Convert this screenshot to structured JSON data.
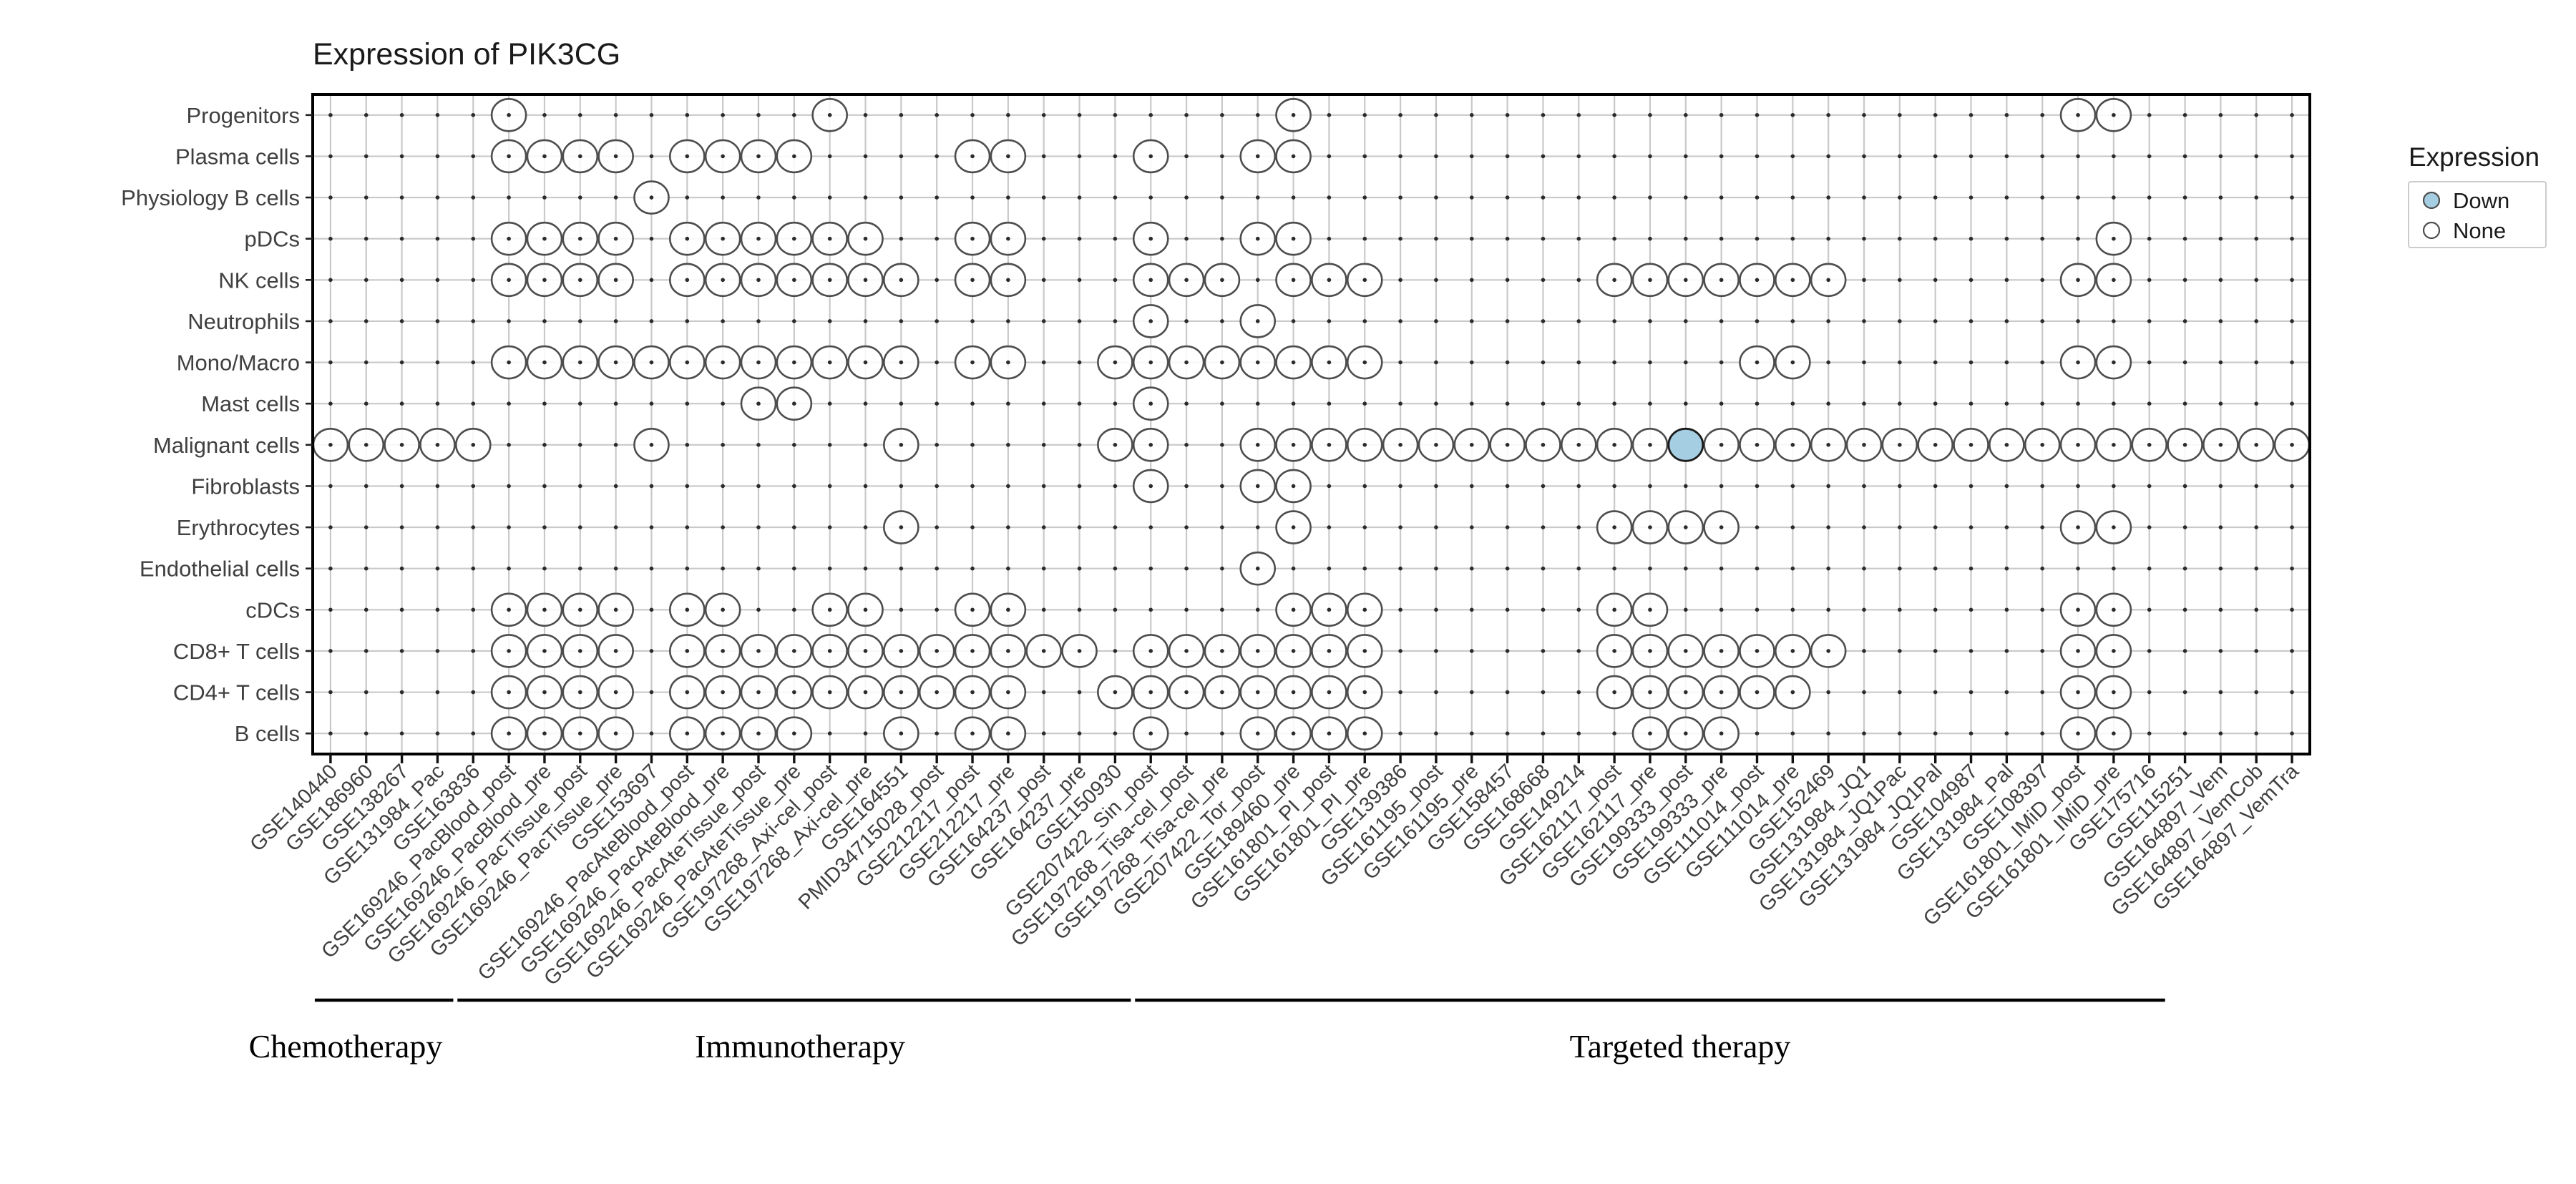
{
  "chart_data": {
    "type": "scatter",
    "title": "Expression of PIK3CG",
    "xlabel": "",
    "ylabel": "",
    "grid": true,
    "legend_position": "right",
    "y_categories": [
      "Progenitors",
      "Plasma cells",
      "Physiology B cells",
      "pDCs",
      "NK cells",
      "Neutrophils",
      "Mono/Macro",
      "Mast cells",
      "Malignant cells",
      "Fibroblasts",
      "Erythrocytes",
      "Endothelial cells",
      "cDCs",
      "CD8+ T cells",
      "CD4+ T cells",
      "B cells"
    ],
    "x_categories": [
      "GSE140440",
      "GSE186960",
      "GSE138267",
      "GSE131984_Pac",
      "GSE163836",
      "GSE169246_PacBlood_post",
      "GSE169246_PacBlood_pre",
      "GSE169246_PacTissue_post",
      "GSE169246_PacTissue_pre",
      "GSE153697",
      "GSE169246_PacAteBlood_post",
      "GSE169246_PacAteBlood_pre",
      "GSE169246_PacAteTissue_post",
      "GSE169246_PacAteTissue_pre",
      "GSE197268_Axi-cel_post",
      "GSE197268_Axi-cel_pre",
      "GSE164551",
      "PMID34715028_post",
      "GSE212217_post",
      "GSE212217_pre",
      "GSE164237_post",
      "GSE164237_pre",
      "GSE150930",
      "GSE207422_Sin_post",
      "GSE197268_Tisa-cel_post",
      "GSE197268_Tisa-cel_pre",
      "GSE207422_Tor_post",
      "GSE189460_pre",
      "GSE161801_PI_post",
      "GSE161801_PI_pre",
      "GSE139386",
      "GSE161195_post",
      "GSE161195_pre",
      "GSE158457",
      "GSE168668",
      "GSE149214",
      "GSE162117_post",
      "GSE162117_pre",
      "GSE199333_post",
      "GSE199333_pre",
      "GSE111014_post",
      "GSE111014_pre",
      "GSE152469",
      "GSE131984_JQ1",
      "GSE131984_JQ1Pac",
      "GSE131984_JQ1Pal",
      "GSE104987",
      "GSE131984_Pal",
      "GSE108397",
      "GSE161801_IMiD_post",
      "GSE161801_IMiD_pre",
      "GSE175716",
      "GSE115251",
      "GSE164897_Vem",
      "GSE164897_VemCob",
      "GSE164897_VemTra"
    ],
    "therapy_groups": [
      {
        "label": "Chemotherapy",
        "from_col": 1,
        "to_col": 4,
        "label_center_x": 483
      },
      {
        "label": "Immunotherapy",
        "from_col": 5,
        "to_col": 23,
        "label_center_x": 1118
      },
      {
        "label": "Targeted therapy",
        "from_col": 24,
        "to_col": 52,
        "label_center_x": 2348
      }
    ],
    "legend": {
      "title": "Expression",
      "entries": [
        {
          "label": "Down",
          "fill": "#a6cee3"
        },
        {
          "label": "None",
          "fill": "#ffffff"
        }
      ]
    },
    "presence": {
      "Progenitors": [
        6,
        15,
        28,
        50,
        51
      ],
      "Plasma cells": [
        6,
        7,
        8,
        9,
        11,
        12,
        13,
        14,
        19,
        20,
        24,
        27,
        28
      ],
      "Physiology B cells": [
        10
      ],
      "pDCs": [
        6,
        7,
        8,
        9,
        11,
        12,
        13,
        14,
        15,
        16,
        19,
        20,
        24,
        27,
        28,
        51
      ],
      "NK cells": [
        6,
        7,
        8,
        9,
        11,
        12,
        13,
        14,
        15,
        16,
        17,
        19,
        20,
        24,
        25,
        26,
        28,
        29,
        30,
        37,
        38,
        39,
        40,
        41,
        42,
        43,
        50,
        51
      ],
      "Neutrophils": [
        24,
        27
      ],
      "Mono/Macro": [
        6,
        7,
        8,
        9,
        10,
        11,
        12,
        13,
        14,
        15,
        16,
        17,
        19,
        20,
        23,
        24,
        25,
        26,
        27,
        28,
        29,
        30,
        41,
        42,
        50,
        51
      ],
      "Mast cells": [
        13,
        14,
        24
      ],
      "Malignant cells": [
        1,
        2,
        3,
        4,
        5,
        10,
        17,
        23,
        24,
        27,
        28,
        29,
        30,
        31,
        32,
        33,
        34,
        35,
        36,
        37,
        38,
        39,
        40,
        41,
        42,
        43,
        44,
        45,
        46,
        47,
        48,
        49,
        50,
        51,
        52,
        53,
        54,
        55,
        56
      ],
      "Fibroblasts": [
        24,
        27,
        28
      ],
      "Erythrocytes": [
        17,
        28,
        37,
        38,
        39,
        40,
        50,
        51
      ],
      "Endothelial cells": [
        27
      ],
      "cDCs": [
        6,
        7,
        8,
        9,
        11,
        12,
        15,
        16,
        19,
        20,
        28,
        29,
        30,
        37,
        38,
        50,
        51
      ],
      "CD8+ T cells": [
        6,
        7,
        8,
        9,
        11,
        12,
        13,
        14,
        15,
        16,
        17,
        18,
        19,
        20,
        21,
        22,
        24,
        25,
        26,
        27,
        28,
        29,
        30,
        37,
        38,
        39,
        40,
        41,
        42,
        43,
        50,
        51
      ],
      "CD4+ T cells": [
        6,
        7,
        8,
        9,
        11,
        12,
        13,
        14,
        15,
        16,
        17,
        18,
        19,
        20,
        23,
        24,
        25,
        26,
        27,
        28,
        29,
        30,
        37,
        38,
        39,
        40,
        41,
        42,
        50,
        51
      ],
      "B cells": [
        6,
        7,
        8,
        9,
        11,
        12,
        13,
        14,
        17,
        19,
        20,
        24,
        27,
        28,
        29,
        30,
        38,
        39,
        40,
        50,
        51
      ]
    },
    "down_cells": [
      {
        "row": "Malignant cells",
        "col": "GSE199333_post"
      }
    ],
    "colors": {
      "down_fill": "#a6cee3",
      "none_fill": "#ffffff",
      "circle_stroke": "#4d4d4d",
      "down_stroke": "#1a1a1a",
      "grid_line": "#c9c9c9",
      "grid_dot": "#2b2b2b",
      "panel_border": "#000000",
      "axis_text": "#404040"
    }
  }
}
